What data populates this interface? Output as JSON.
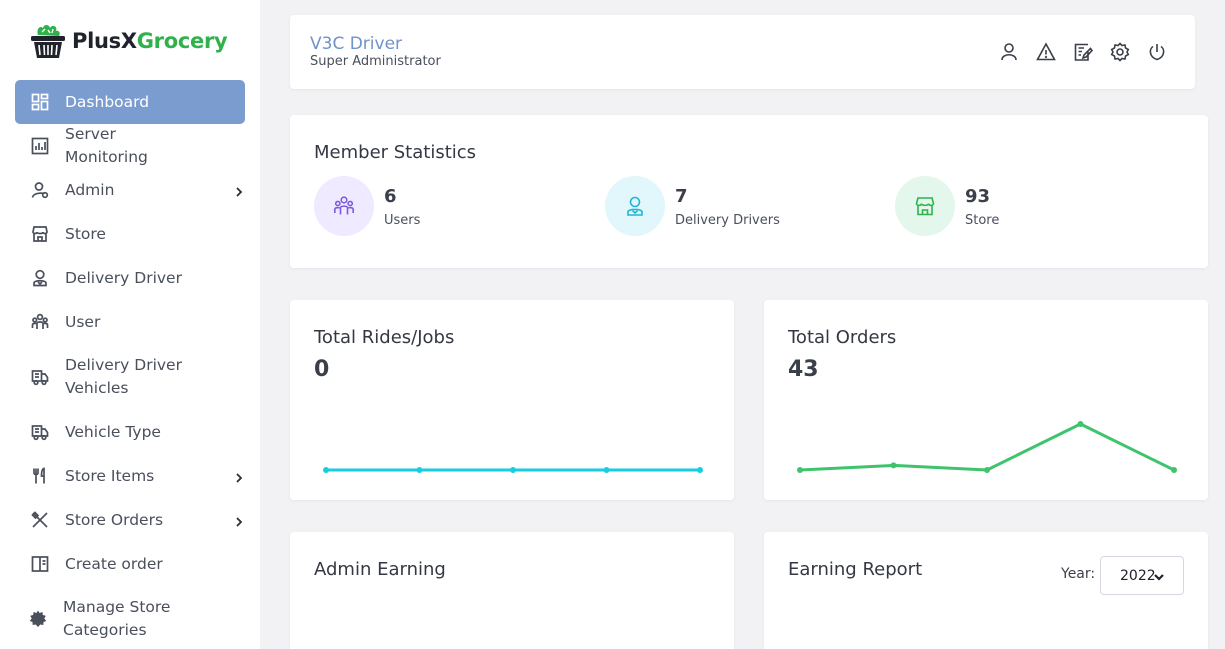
{
  "brand": {
    "part1": "PlusX",
    "part2": "Grocery",
    "color_part2": "#2fb24c"
  },
  "sidebar": {
    "items": [
      {
        "label": "Dashboard",
        "icon": "dashboard-icon",
        "active": true
      },
      {
        "label": "Server Monitoring",
        "icon": "bar-chart-icon"
      },
      {
        "label": "Admin",
        "icon": "admin-user-icon",
        "submenu": true
      },
      {
        "label": "Store",
        "icon": "store-icon"
      },
      {
        "label": "Delivery Driver",
        "icon": "driver-icon"
      },
      {
        "label": "User",
        "icon": "users-icon"
      },
      {
        "label": "Delivery Driver Vehicles",
        "icon": "vehicle-icon"
      },
      {
        "label": "Vehicle Type",
        "icon": "vehicle-type-icon"
      },
      {
        "label": "Store Items",
        "icon": "cutlery-icon",
        "submenu": true
      },
      {
        "label": "Store Orders",
        "icon": "utensils-cross-icon",
        "submenu": true
      },
      {
        "label": "Create order",
        "icon": "order-icon"
      },
      {
        "label": "Manage Store Categories",
        "icon": "gear-icon"
      }
    ]
  },
  "header": {
    "name": "V3C Driver",
    "role": "Super Administrator",
    "icons": [
      "profile-icon",
      "alert-icon",
      "edit-note-icon",
      "settings-icon",
      "power-icon"
    ]
  },
  "member_stats": {
    "title": "Member Statistics",
    "items": [
      {
        "value": "6",
        "label": "Users",
        "icon": "users-icon",
        "bg": "#efeaff",
        "fg": "#7c5be0"
      },
      {
        "value": "7",
        "label": "Delivery Drivers",
        "icon": "driver-icon",
        "bg": "#e2f7fb",
        "fg": "#1fb6d5"
      },
      {
        "value": "93",
        "label": "Store",
        "icon": "store-icon",
        "bg": "#e4f7ec",
        "fg": "#2fb24c"
      }
    ]
  },
  "rides": {
    "title": "Total Rides/Jobs",
    "value": "0",
    "color": "#19cde0",
    "chart_data": {
      "type": "line",
      "values": [
        0,
        0,
        0,
        0,
        0
      ]
    }
  },
  "orders": {
    "title": "Total Orders",
    "value": "43",
    "color": "#3ec46d",
    "chart_data": {
      "type": "line",
      "values": [
        2,
        3,
        2,
        12,
        2
      ]
    }
  },
  "admin_earning": {
    "title": "Admin Earning"
  },
  "earning_report": {
    "title": "Earning Report",
    "year_label": "Year:",
    "year": "2022"
  }
}
